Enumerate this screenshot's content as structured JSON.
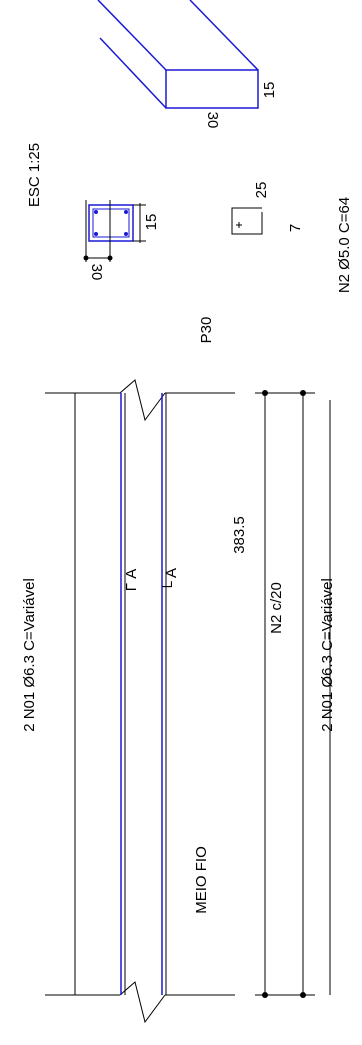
{
  "scale": "ESC 1:25",
  "iso_view": {
    "dim_height": "15",
    "dim_width": "30"
  },
  "section": {
    "dim_width": "30",
    "dim_height": "15"
  },
  "stirrup": {
    "dim_long": "25",
    "dim_short": "7",
    "label": "N2 Ø5.0 C=64"
  },
  "elevation": {
    "pillar": "P30",
    "top_bar": "2 N01 Ø6.3 C=Variável",
    "cut_top": "Γ A",
    "cut_bottom": "└ A",
    "length": "383.5",
    "stirrups": "N2 c/20",
    "note": "MEIO FIO",
    "bottom_bar": "2 N01 Ø6.3 C=Variável"
  }
}
